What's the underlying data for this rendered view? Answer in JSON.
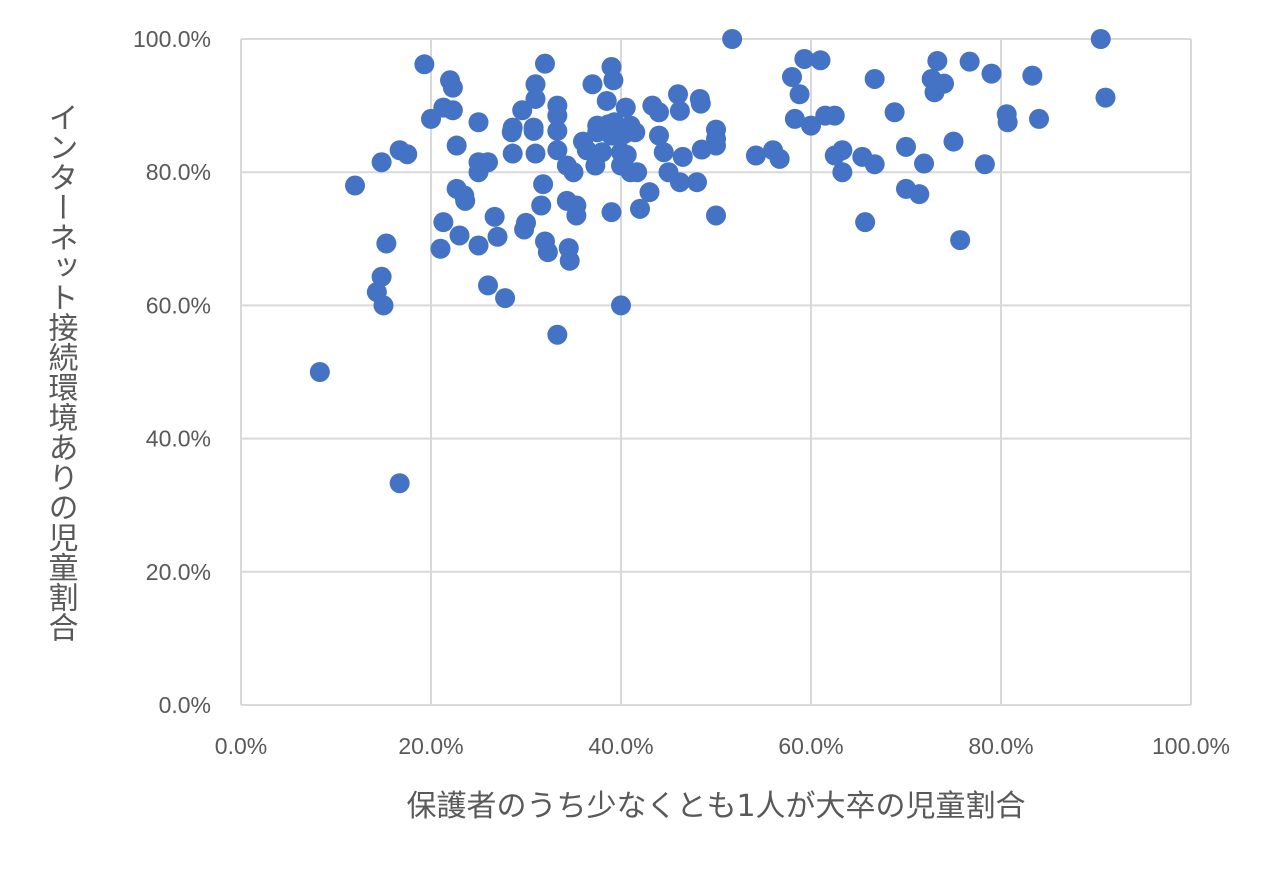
{
  "chart_data": {
    "type": "scatter",
    "title": "",
    "xlabel": "保護者のうち少なくとも1人が大卒の児童割合",
    "ylabel": "インターネット接続環境ありの児童割合",
    "xlim": [
      0,
      1
    ],
    "ylim": [
      0,
      1
    ],
    "grid": true,
    "legend": "none",
    "x_ticks": [
      "0.0%",
      "20.0%",
      "40.0%",
      "60.0%",
      "80.0%",
      "100.0%"
    ],
    "y_ticks": [
      "0.0%",
      "20.0%",
      "40.0%",
      "60.0%",
      "80.0%",
      "100.0%"
    ],
    "marker_color": "#4472c4",
    "points": [
      [
        0.083,
        0.5
      ],
      [
        0.167,
        0.333
      ],
      [
        0.12,
        0.78
      ],
      [
        0.148,
        0.815
      ],
      [
        0.143,
        0.62
      ],
      [
        0.148,
        0.643
      ],
      [
        0.15,
        0.6
      ],
      [
        0.153,
        0.693
      ],
      [
        0.167,
        0.833
      ],
      [
        0.175,
        0.827
      ],
      [
        0.193,
        0.962
      ],
      [
        0.2,
        0.88
      ],
      [
        0.21,
        0.685
      ],
      [
        0.213,
        0.725
      ],
      [
        0.213,
        0.897
      ],
      [
        0.22,
        0.938
      ],
      [
        0.223,
        0.927
      ],
      [
        0.223,
        0.893
      ],
      [
        0.227,
        0.84
      ],
      [
        0.227,
        0.775
      ],
      [
        0.23,
        0.705
      ],
      [
        0.235,
        0.765
      ],
      [
        0.236,
        0.757
      ],
      [
        0.25,
        0.875
      ],
      [
        0.25,
        0.8
      ],
      [
        0.25,
        0.815
      ],
      [
        0.25,
        0.69
      ],
      [
        0.26,
        0.815
      ],
      [
        0.26,
        0.63
      ],
      [
        0.267,
        0.733
      ],
      [
        0.27,
        0.703
      ],
      [
        0.278,
        0.611
      ],
      [
        0.285,
        0.86
      ],
      [
        0.286,
        0.867
      ],
      [
        0.286,
        0.828
      ],
      [
        0.296,
        0.893
      ],
      [
        0.298,
        0.714
      ],
      [
        0.3,
        0.724
      ],
      [
        0.308,
        0.862
      ],
      [
        0.308,
        0.867
      ],
      [
        0.31,
        0.91
      ],
      [
        0.31,
        0.932
      ],
      [
        0.31,
        0.828
      ],
      [
        0.316,
        0.75
      ],
      [
        0.318,
        0.782
      ],
      [
        0.32,
        0.963
      ],
      [
        0.32,
        0.696
      ],
      [
        0.323,
        0.68
      ],
      [
        0.333,
        0.9
      ],
      [
        0.333,
        0.885
      ],
      [
        0.333,
        0.862
      ],
      [
        0.333,
        0.833
      ],
      [
        0.333,
        0.556
      ],
      [
        0.343,
        0.81
      ],
      [
        0.343,
        0.757
      ],
      [
        0.345,
        0.686
      ],
      [
        0.346,
        0.667
      ],
      [
        0.35,
        0.8
      ],
      [
        0.353,
        0.75
      ],
      [
        0.353,
        0.735
      ],
      [
        0.36,
        0.846
      ],
      [
        0.364,
        0.833
      ],
      [
        0.37,
        0.932
      ],
      [
        0.373,
        0.81
      ],
      [
        0.375,
        0.87
      ],
      [
        0.375,
        0.86
      ],
      [
        0.38,
        0.83
      ],
      [
        0.385,
        0.907
      ],
      [
        0.387,
        0.872
      ],
      [
        0.39,
        0.855
      ],
      [
        0.39,
        0.74
      ],
      [
        0.39,
        0.958
      ],
      [
        0.392,
        0.938
      ],
      [
        0.393,
        0.875
      ],
      [
        0.4,
        0.6
      ],
      [
        0.4,
        0.83
      ],
      [
        0.4,
        0.81
      ],
      [
        0.403,
        0.857
      ],
      [
        0.405,
        0.897
      ],
      [
        0.406,
        0.826
      ],
      [
        0.41,
        0.8
      ],
      [
        0.41,
        0.87
      ],
      [
        0.415,
        0.86
      ],
      [
        0.417,
        0.8
      ],
      [
        0.42,
        0.745
      ],
      [
        0.43,
        0.77
      ],
      [
        0.433,
        0.9
      ],
      [
        0.44,
        0.89
      ],
      [
        0.44,
        0.855
      ],
      [
        0.445,
        0.83
      ],
      [
        0.45,
        0.8
      ],
      [
        0.46,
        0.917
      ],
      [
        0.462,
        0.892
      ],
      [
        0.462,
        0.785
      ],
      [
        0.465,
        0.823
      ],
      [
        0.48,
        0.785
      ],
      [
        0.483,
        0.91
      ],
      [
        0.484,
        0.903
      ],
      [
        0.485,
        0.834
      ],
      [
        0.5,
        0.864
      ],
      [
        0.5,
        0.85
      ],
      [
        0.5,
        0.84
      ],
      [
        0.5,
        0.735
      ],
      [
        0.517,
        1.0
      ],
      [
        0.542,
        0.825
      ],
      [
        0.56,
        0.833
      ],
      [
        0.567,
        0.82
      ],
      [
        0.58,
        0.943
      ],
      [
        0.583,
        0.88
      ],
      [
        0.588,
        0.917
      ],
      [
        0.593,
        0.97
      ],
      [
        0.6,
        0.87
      ],
      [
        0.61,
        0.968
      ],
      [
        0.615,
        0.885
      ],
      [
        0.625,
        0.885
      ],
      [
        0.625,
        0.825
      ],
      [
        0.633,
        0.833
      ],
      [
        0.633,
        0.8
      ],
      [
        0.654,
        0.823
      ],
      [
        0.657,
        0.725
      ],
      [
        0.667,
        0.94
      ],
      [
        0.667,
        0.812
      ],
      [
        0.688,
        0.89
      ],
      [
        0.7,
        0.775
      ],
      [
        0.7,
        0.838
      ],
      [
        0.714,
        0.767
      ],
      [
        0.719,
        0.813
      ],
      [
        0.727,
        0.94
      ],
      [
        0.73,
        0.92
      ],
      [
        0.733,
        0.967
      ],
      [
        0.74,
        0.933
      ],
      [
        0.75,
        0.846
      ],
      [
        0.757,
        0.698
      ],
      [
        0.767,
        0.966
      ],
      [
        0.783,
        0.812
      ],
      [
        0.79,
        0.948
      ],
      [
        0.806,
        0.887
      ],
      [
        0.807,
        0.875
      ],
      [
        0.833,
        0.945
      ],
      [
        0.84,
        0.88
      ],
      [
        0.905,
        1.0
      ],
      [
        0.91,
        0.912
      ]
    ]
  }
}
